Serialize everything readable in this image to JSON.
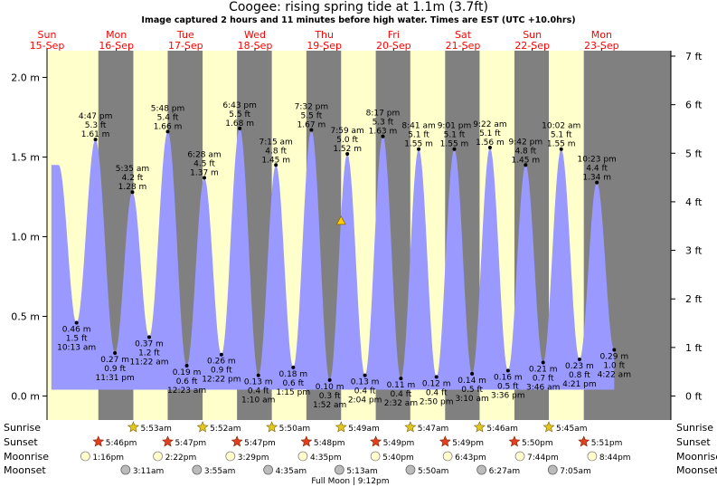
{
  "title": "Coogee: rising  spring tide at 1.1m (3.7ft)",
  "subtitle": "Image captured 2 hours and 11 minutes before high water. Times are EST (UTC +10.0hrs)",
  "chart_data": {
    "type": "area",
    "x_unit": "hours from Sun 15-Sep 00:00 (EST)",
    "ylabel_left": "metres",
    "ylabel_right": "feet",
    "ylim_m": [
      -0.1,
      2.2
    ],
    "xlim_hours": [
      0,
      216
    ],
    "y_ticks_m": [
      "0.0 m",
      "0.5 m",
      "1.0 m",
      "1.5 m",
      "2.0 m"
    ],
    "y_ticks_ft": [
      "0 ft",
      "1 ft",
      "2 ft",
      "3 ft",
      "4 ft",
      "5 ft",
      "6 ft",
      "7 ft"
    ],
    "days": [
      {
        "dow": "Sun",
        "date": "15-Sep"
      },
      {
        "dow": "Mon",
        "date": "16-Sep"
      },
      {
        "dow": "Tue",
        "date": "17-Sep"
      },
      {
        "dow": "Wed",
        "date": "18-Sep"
      },
      {
        "dow": "Thu",
        "date": "19-Sep"
      },
      {
        "dow": "Fri",
        "date": "20-Sep"
      },
      {
        "dow": "Sat",
        "date": "21-Sep"
      },
      {
        "dow": "Sun",
        "date": "22-Sep"
      },
      {
        "dow": "Mon",
        "date": "23-Sep"
      }
    ],
    "tides": [
      {
        "type": "low",
        "t": 10.22,
        "m": 0.46,
        "time": "10:13 am",
        "ft": "1.5 ft",
        "mtxt": "0.46 m"
      },
      {
        "type": "high",
        "t": 16.78,
        "m": 1.61,
        "time": "4:47 pm",
        "ft": "5.3 ft",
        "mtxt": "1.61 m"
      },
      {
        "type": "low",
        "t": 23.52,
        "m": 0.27,
        "time": "11:31 pm",
        "ft": "0.9 ft",
        "mtxt": "0.27 m"
      },
      {
        "type": "high",
        "t": 29.58,
        "m": 1.28,
        "time": "5:35 am",
        "ft": "4.2 ft",
        "mtxt": "1.28 m"
      },
      {
        "type": "low",
        "t": 35.37,
        "m": 0.37,
        "time": "11:22 am",
        "ft": "1.2 ft",
        "mtxt": "0.37 m"
      },
      {
        "type": "high",
        "t": 41.8,
        "m": 1.66,
        "time": "5:48 pm",
        "ft": "5.4 ft",
        "mtxt": "1.66 m"
      },
      {
        "type": "low",
        "t": 48.38,
        "m": 0.19,
        "time": "12:23 am",
        "ft": "0.6 ft",
        "mtxt": "0.19 m"
      },
      {
        "type": "high",
        "t": 54.47,
        "m": 1.37,
        "time": "6:28 am",
        "ft": "4.5 ft",
        "mtxt": "1.37 m"
      },
      {
        "type": "low",
        "t": 60.37,
        "m": 0.26,
        "time": "12:22 pm",
        "ft": "0.9 ft",
        "mtxt": "0.26 m"
      },
      {
        "type": "high",
        "t": 66.72,
        "m": 1.68,
        "time": "6:43 pm",
        "ft": "5.5 ft",
        "mtxt": "1.68 m"
      },
      {
        "type": "low",
        "t": 73.17,
        "m": 0.13,
        "time": "1:10 am",
        "ft": "0.4 ft",
        "mtxt": "0.13 m"
      },
      {
        "type": "high",
        "t": 79.25,
        "m": 1.45,
        "time": "7:15 am",
        "ft": "4.8 ft",
        "mtxt": "1.45 m"
      },
      {
        "type": "low",
        "t": 85.25,
        "m": 0.18,
        "time": "1:15 pm",
        "ft": "0.6 ft",
        "mtxt": "0.18 m"
      },
      {
        "type": "high",
        "t": 91.53,
        "m": 1.67,
        "time": "7:32 pm",
        "ft": "5.5 ft",
        "mtxt": "1.67 m"
      },
      {
        "type": "low",
        "t": 97.87,
        "m": 0.1,
        "time": "1:52 am",
        "ft": "0.3 ft",
        "mtxt": "0.10 m"
      },
      {
        "type": "high",
        "t": 103.98,
        "m": 1.52,
        "time": "7:59 am",
        "ft": "5.0 ft",
        "mtxt": "1.52 m"
      },
      {
        "type": "low",
        "t": 110.07,
        "m": 0.13,
        "time": "2:04 pm",
        "ft": "0.4 ft",
        "mtxt": "0.13 m"
      },
      {
        "type": "high",
        "t": 116.28,
        "m": 1.63,
        "time": "8:17 pm",
        "ft": "5.3 ft",
        "mtxt": "1.63 m"
      },
      {
        "type": "low",
        "t": 122.53,
        "m": 0.11,
        "time": "2:32 am",
        "ft": "0.4 ft",
        "mtxt": "0.11 m"
      },
      {
        "type": "high",
        "t": 128.68,
        "m": 1.55,
        "time": "8:41 am",
        "ft": "5.1 ft",
        "mtxt": "1.55 m"
      },
      {
        "type": "low",
        "t": 134.83,
        "m": 0.12,
        "time": "2:50 pm",
        "ft": "0.4 ft",
        "mtxt": "0.12 m"
      },
      {
        "type": "high",
        "t": 141.02,
        "m": 1.55,
        "time": "9:01 pm",
        "ft": "5.1 ft",
        "mtxt": "1.55 m"
      },
      {
        "type": "low",
        "t": 147.17,
        "m": 0.14,
        "time": "3:10 am",
        "ft": "0.5 ft",
        "mtxt": "0.14 m"
      },
      {
        "type": "high",
        "t": 153.37,
        "m": 1.56,
        "time": "9:22 am",
        "ft": "5.1 ft",
        "mtxt": "1.56 m"
      },
      {
        "type": "low",
        "t": 159.6,
        "m": 0.16,
        "time": "3:36 pm",
        "ft": "0.5 ft",
        "mtxt": "0.16 m"
      },
      {
        "type": "high",
        "t": 165.7,
        "m": 1.45,
        "time": "9:42 pm",
        "ft": "4.8 ft",
        "mtxt": "1.45 m"
      },
      {
        "type": "low",
        "t": 171.77,
        "m": 0.21,
        "time": "3:46 am",
        "ft": "0.7 ft",
        "mtxt": "0.21 m"
      },
      {
        "type": "high",
        "t": 178.03,
        "m": 1.55,
        "time": "10:02 am",
        "ft": "5.1 ft",
        "mtxt": "1.55 m"
      },
      {
        "type": "low",
        "t": 184.35,
        "m": 0.23,
        "time": "4:21 pm",
        "ft": "0.8 ft",
        "mtxt": "0.23 m"
      },
      {
        "type": "high",
        "t": 190.38,
        "m": 1.34,
        "time": "10:23 pm",
        "ft": "4.4 ft",
        "mtxt": "1.34 m"
      },
      {
        "type": "low",
        "t": 196.37,
        "m": 0.29,
        "time": "4:22 am",
        "ft": "1.0 ft",
        "mtxt": "0.29 m"
      }
    ],
    "current": {
      "t": 101.8,
      "m": 1.1
    },
    "nights": [
      [
        17.77,
        29.88
      ],
      [
        41.78,
        53.87
      ],
      [
        65.78,
        77.83
      ],
      [
        89.8,
        101.82
      ],
      [
        113.82,
        125.78
      ],
      [
        137.83,
        149.77
      ],
      [
        161.83,
        173.75
      ],
      [
        185.85,
        216
      ]
    ],
    "rise_set_rows": [
      "Sunrise",
      "Sunset",
      "Moonrise",
      "Moonset"
    ],
    "sunrise": [
      {
        "t": 29.88,
        "label": "5:53am"
      },
      {
        "t": 53.87,
        "label": "5:52am"
      },
      {
        "t": 77.83,
        "label": "5:50am"
      },
      {
        "t": 101.82,
        "label": "5:49am"
      },
      {
        "t": 125.78,
        "label": "5:47am"
      },
      {
        "t": 149.77,
        "label": "5:46am"
      },
      {
        "t": 173.75,
        "label": "5:45am"
      }
    ],
    "sunset": [
      {
        "t": 17.77,
        "label": "5:46pm"
      },
      {
        "t": 41.78,
        "label": "5:47pm"
      },
      {
        "t": 65.78,
        "label": "5:47pm"
      },
      {
        "t": 89.8,
        "label": "5:48pm"
      },
      {
        "t": 113.82,
        "label": "5:49pm"
      },
      {
        "t": 137.83,
        "label": "5:49pm"
      },
      {
        "t": 161.83,
        "label": "5:50pm"
      },
      {
        "t": 185.85,
        "label": "5:51pm"
      }
    ],
    "moonrise": [
      {
        "t": 13.27,
        "label": "1:16pm"
      },
      {
        "t": 38.37,
        "label": "2:22pm"
      },
      {
        "t": 63.48,
        "label": "3:29pm"
      },
      {
        "t": 88.58,
        "label": "4:35pm"
      },
      {
        "t": 113.67,
        "label": "5:40pm"
      },
      {
        "t": 138.72,
        "label": "6:43pm"
      },
      {
        "t": 163.73,
        "label": "7:44pm"
      },
      {
        "t": 188.73,
        "label": "8:44pm"
      }
    ],
    "moonset": [
      {
        "t": 27.18,
        "label": "3:11am"
      },
      {
        "t": 51.92,
        "label": "3:55am"
      },
      {
        "t": 76.58,
        "label": "4:35am"
      },
      {
        "t": 101.22,
        "label": "5:13am"
      },
      {
        "t": 125.83,
        "label": "5:50am"
      },
      {
        "t": 150.45,
        "label": "6:27am"
      },
      {
        "t": 175.08,
        "label": "7:05am"
      }
    ],
    "moon_phase_note": {
      "t": 105.0,
      "label": "Full Moon | 9:12pm"
    },
    "colors": {
      "day": "#ffffcc",
      "night": "#808080",
      "water": "#9999ff",
      "day_label": "#ff0000",
      "sunstar": "#c8b400",
      "sunset_star": "#cc3300"
    }
  }
}
